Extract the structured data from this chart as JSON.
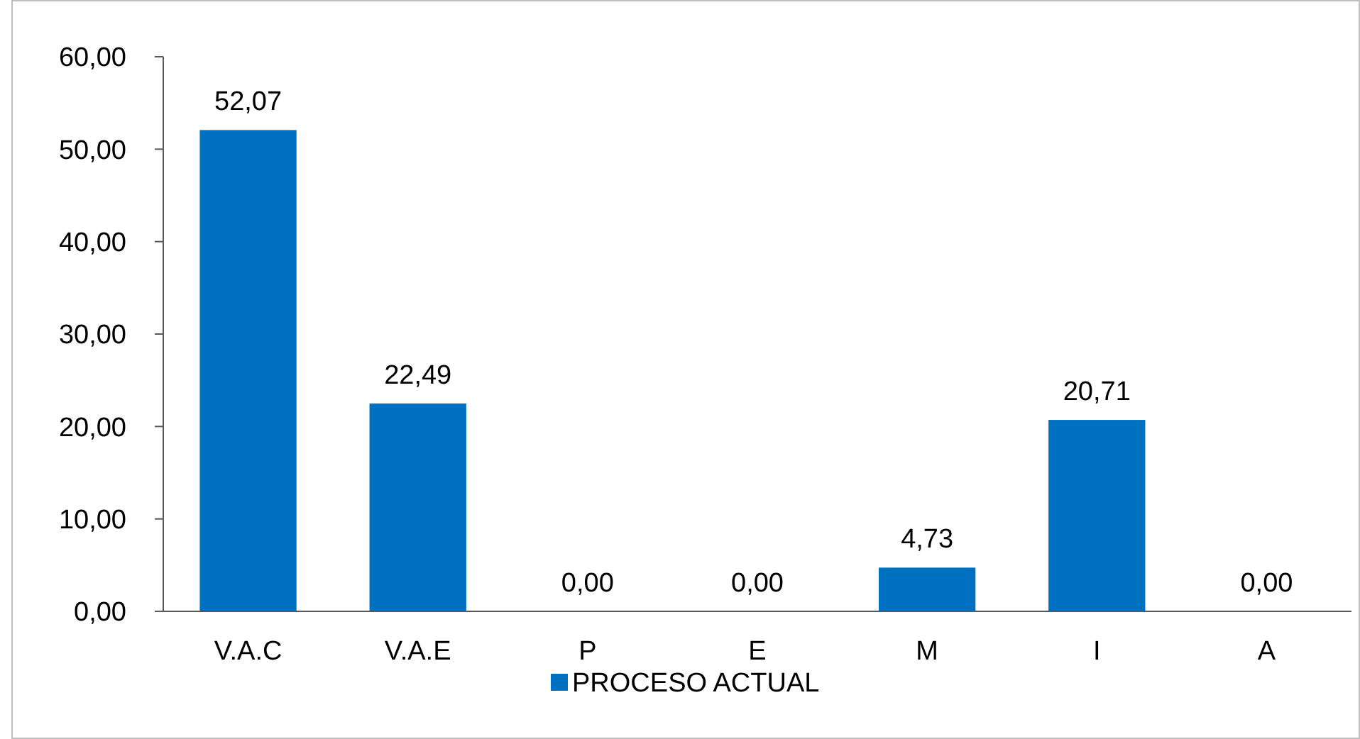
{
  "chart_data": {
    "type": "bar",
    "categories": [
      "V.A.C",
      "V.A.E",
      "P",
      "E",
      "M",
      "I",
      "A"
    ],
    "series": [
      {
        "name": "PROCESO ACTUAL",
        "color": "#0070c0",
        "values": [
          52.07,
          22.49,
          0,
          0,
          4.73,
          20.71,
          0
        ],
        "value_labels": [
          "52,07",
          "22,49",
          "0,00",
          "0,00",
          "4,73",
          "20,71",
          "0,00"
        ]
      }
    ],
    "ylim": [
      0,
      60
    ],
    "yticks": [
      {
        "value": 0,
        "label": "0,00"
      },
      {
        "value": 10,
        "label": "10,00"
      },
      {
        "value": 20,
        "label": "20,00"
      },
      {
        "value": 30,
        "label": "30,00"
      },
      {
        "value": 40,
        "label": "40,00"
      },
      {
        "value": 50,
        "label": "50,00"
      },
      {
        "value": 60,
        "label": "60,00"
      }
    ],
    "grid": false,
    "legend": "bottom"
  }
}
